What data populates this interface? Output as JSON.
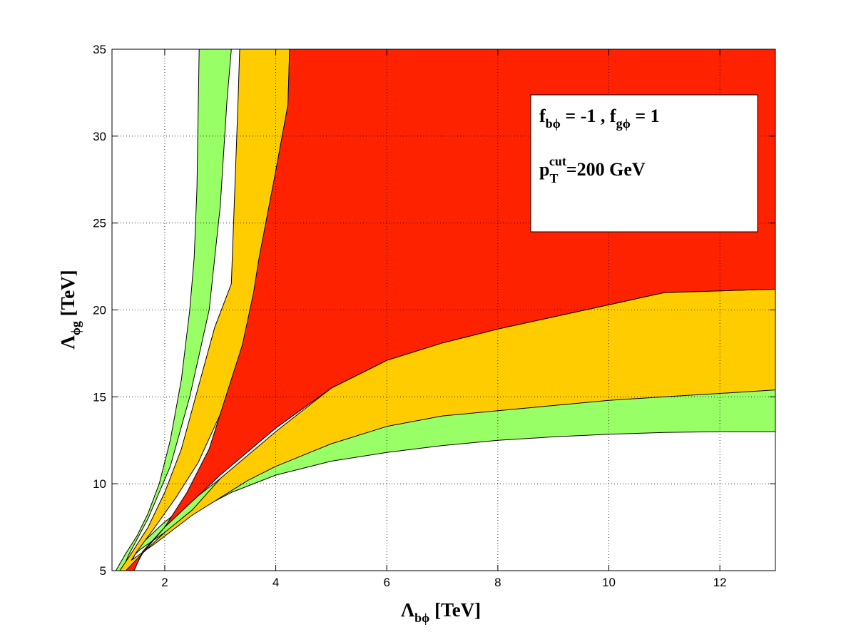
{
  "chart_data": {
    "type": "area",
    "title": "",
    "xlabel": {
      "main": "Λ",
      "sub": "bϕ",
      "suffix": " [TeV]"
    },
    "ylabel": {
      "main": "Λ",
      "sub": "ϕg",
      "suffix": " [TeV]"
    },
    "xlim": [
      1.05,
      13
    ],
    "ylim": [
      5,
      35
    ],
    "xticks": [
      2,
      4,
      6,
      8,
      10,
      12
    ],
    "yticks": [
      5,
      10,
      15,
      20,
      25,
      30,
      35
    ],
    "grid": true,
    "annotation": {
      "line1": {
        "f1": "f",
        "s1": "bϕ",
        "mid": " = -1 , ",
        "f2": "f",
        "s2": "gϕ",
        "end": " = 1"
      },
      "line2": {
        "p": "p",
        "sub": "T",
        "sup": "cut",
        "rest": "=200 GeV"
      },
      "placement": "top-right"
    },
    "colors": {
      "outer": "#99ff66",
      "middle": "#ffcc00",
      "inner": "#ff2200",
      "outline": "#000000"
    },
    "contours": {
      "outer": [
        [
          1.12,
          5
        ],
        [
          1.3,
          6
        ],
        [
          1.5,
          7
        ],
        [
          1.7,
          8.3
        ],
        [
          1.9,
          10
        ],
        [
          2.1,
          12.5
        ],
        [
          2.3,
          16
        ],
        [
          2.45,
          20
        ],
        [
          2.53,
          23
        ],
        [
          2.58,
          27
        ],
        [
          2.62,
          35
        ],
        [
          3.2,
          35
        ],
        [
          3.12,
          32
        ],
        [
          3.0,
          26
        ],
        [
          2.8,
          20
        ],
        [
          2.45,
          15
        ],
        [
          2.1,
          11
        ],
        [
          1.7,
          8
        ],
        [
          1.35,
          5.9
        ],
        [
          1.27,
          5.3
        ],
        [
          1.55,
          6.2
        ],
        [
          2.0,
          7.2
        ],
        [
          2.6,
          8.5
        ],
        [
          3.2,
          9.5
        ],
        [
          4.0,
          10.5
        ],
        [
          5.0,
          11.3
        ],
        [
          6.0,
          11.8
        ],
        [
          7.0,
          12.2
        ],
        [
          8.0,
          12.5
        ],
        [
          9.0,
          12.7
        ],
        [
          10.0,
          12.85
        ],
        [
          11.0,
          12.95
        ],
        [
          12.0,
          13
        ],
        [
          13,
          13
        ],
        [
          13,
          15.6
        ],
        [
          12.0,
          15.6
        ],
        [
          11.0,
          15.6
        ],
        [
          10.0,
          15.3
        ],
        [
          9.0,
          15.0
        ],
        [
          8.0,
          14.7
        ],
        [
          7.0,
          14.3
        ],
        [
          6.0,
          13.9
        ],
        [
          5.0,
          13.2
        ],
        [
          4.0,
          12.0
        ],
        [
          3.0,
          10.3
        ],
        [
          2.0,
          7.8
        ],
        [
          1.5,
          6.3
        ],
        [
          1.36,
          5
        ]
      ],
      "middle": [
        [
          1.19,
          5
        ],
        [
          1.4,
          6
        ],
        [
          1.7,
          7.5
        ],
        [
          2.0,
          9.5
        ],
        [
          2.3,
          12
        ],
        [
          2.6,
          15.5
        ],
        [
          2.9,
          19
        ],
        [
          3.2,
          21.5
        ],
        [
          3.32,
          32
        ],
        [
          3.35,
          35
        ],
        [
          4.25,
          35
        ],
        [
          4.22,
          31.8
        ],
        [
          4.0,
          28
        ],
        [
          3.8,
          22.5
        ],
        [
          3.4,
          17.5
        ],
        [
          3.0,
          14
        ],
        [
          2.6,
          11.2
        ],
        [
          2.2,
          9.2
        ],
        [
          1.8,
          7.4
        ],
        [
          1.5,
          6.1
        ],
        [
          1.4,
          5.6
        ],
        [
          1.8,
          6.5
        ],
        [
          2.5,
          8.2
        ],
        [
          3.0,
          9.2
        ],
        [
          3.5,
          10.2
        ],
        [
          4.0,
          11.0
        ],
        [
          5.0,
          12.3
        ],
        [
          6.0,
          13.3
        ],
        [
          7.0,
          13.9
        ],
        [
          8.0,
          14.2
        ],
        [
          9.0,
          14.5
        ],
        [
          10.0,
          14.8
        ],
        [
          11.0,
          15.0
        ],
        [
          12.0,
          15.2
        ],
        [
          13,
          15.4
        ],
        [
          13,
          21.2
        ],
        [
          12.0,
          21.1
        ],
        [
          11.0,
          21.0
        ],
        [
          10.0,
          20.3
        ],
        [
          9.0,
          19.6
        ],
        [
          8.0,
          18.9
        ],
        [
          7.0,
          18.1
        ],
        [
          6.0,
          17.1
        ],
        [
          5.0,
          15.5
        ],
        [
          4.0,
          13.0
        ],
        [
          3.0,
          10.3
        ],
        [
          2.5,
          8.5
        ],
        [
          2.0,
          7.2
        ],
        [
          1.6,
          6.0
        ],
        [
          1.43,
          5
        ]
      ],
      "inner": [
        [
          1.3,
          5
        ],
        [
          1.6,
          6
        ],
        [
          2.0,
          7.5
        ],
        [
          2.4,
          9.5
        ],
        [
          2.8,
          12
        ],
        [
          3.1,
          15
        ],
        [
          3.4,
          18
        ],
        [
          3.6,
          21
        ],
        [
          3.7,
          23
        ],
        [
          4.0,
          28
        ],
        [
          4.22,
          31.8
        ],
        [
          4.25,
          35
        ],
        [
          13,
          35
        ],
        [
          13,
          21.2
        ],
        [
          12.0,
          21.1
        ],
        [
          11.0,
          21.0
        ],
        [
          10.0,
          20.3
        ],
        [
          9.0,
          19.6
        ],
        [
          8.0,
          18.9
        ],
        [
          7.0,
          18.1
        ],
        [
          6.0,
          17.1
        ],
        [
          5.0,
          15.5
        ],
        [
          4.0,
          13.2
        ],
        [
          3.0,
          10.5
        ],
        [
          2.5,
          9.0
        ],
        [
          2.0,
          7.5
        ],
        [
          1.6,
          6.1
        ],
        [
          1.45,
          5
        ]
      ]
    }
  }
}
